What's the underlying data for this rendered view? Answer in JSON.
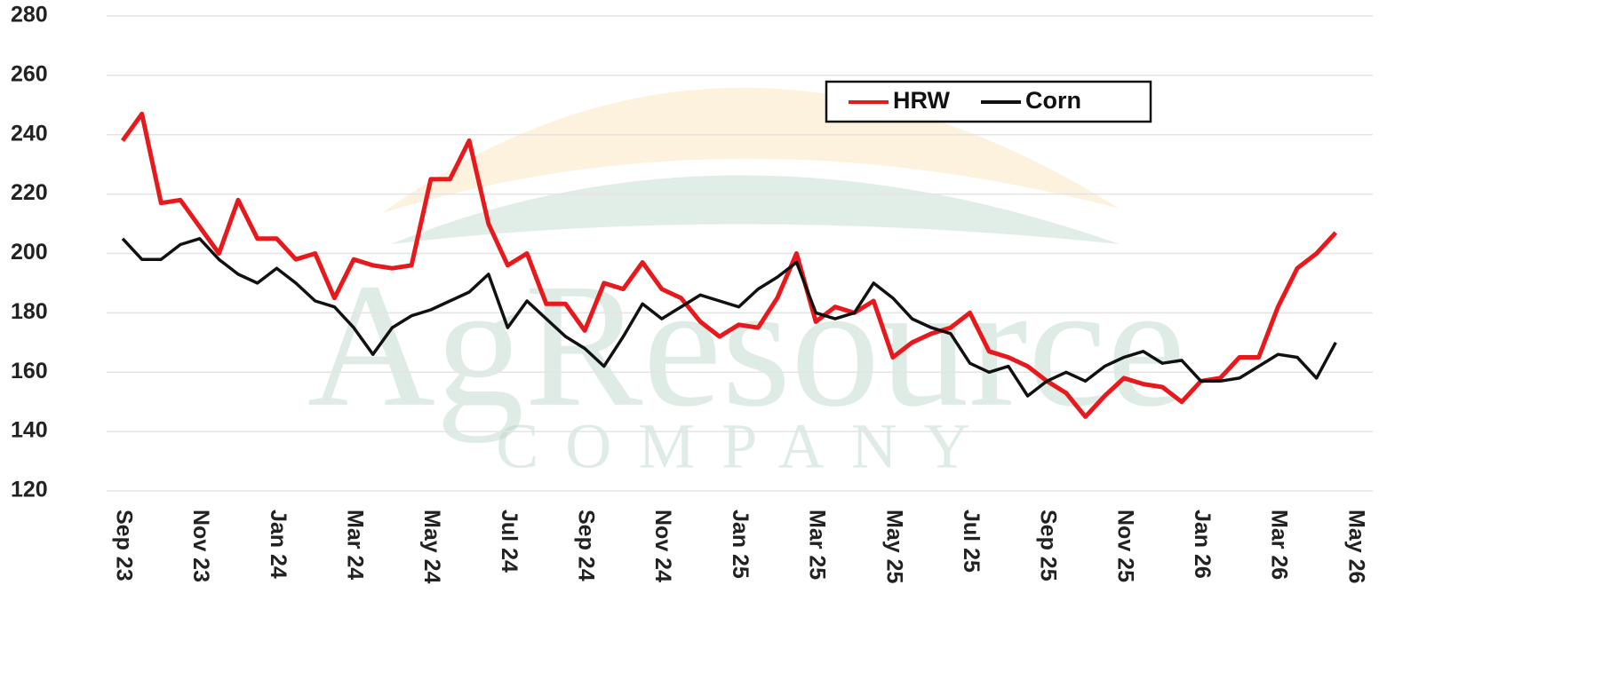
{
  "chart_data": {
    "type": "line",
    "watermark": {
      "title": "AgResource",
      "subtitle": "COMPANY"
    },
    "categories": [
      "Sep 23",
      null,
      null,
      null,
      "Nov 23",
      null,
      null,
      null,
      "Jan 24",
      null,
      null,
      null,
      "Mar 24",
      null,
      null,
      null,
      "May 24",
      null,
      null,
      null,
      "Jul 24",
      null,
      null,
      null,
      "Sep 24",
      null,
      null,
      null,
      "Nov 24",
      null,
      null,
      null,
      "Jan 25",
      null,
      null,
      null,
      "Mar 25",
      null,
      null,
      null,
      "May 25",
      null,
      null,
      null,
      "Jul 25",
      null,
      null,
      null,
      "Sep 25",
      null,
      null,
      null,
      "Nov 25",
      null,
      null,
      null,
      "Jan 26",
      null,
      null,
      null,
      "Mar 26",
      null,
      null,
      null,
      "May 26"
    ],
    "series": [
      {
        "name": "HRW",
        "color": "#e8191c",
        "values": [
          238,
          247,
          217,
          218,
          209,
          200,
          218,
          205,
          205,
          198,
          200,
          185,
          198,
          196,
          195,
          196,
          225,
          225,
          238,
          210,
          196,
          200,
          183,
          183,
          174,
          190,
          188,
          197,
          188,
          185,
          177,
          172,
          176,
          175,
          185,
          200,
          177,
          182,
          180,
          184,
          165,
          170,
          173,
          175,
          180,
          167,
          165,
          162,
          157,
          153,
          145,
          152,
          158,
          156,
          155,
          150,
          157,
          158,
          165,
          165,
          182,
          195,
          200,
          207,
          null
        ]
      },
      {
        "name": "Corn",
        "color": "#111111",
        "values": [
          205,
          198,
          198,
          203,
          205,
          198,
          193,
          190,
          195,
          190,
          184,
          182,
          175,
          166,
          175,
          179,
          181,
          184,
          187,
          193,
          175,
          184,
          178,
          172,
          168,
          162,
          172,
          183,
          178,
          182,
          186,
          184,
          182,
          188,
          192,
          197,
          180,
          178,
          180,
          190,
          185,
          178,
          175,
          173,
          163,
          160,
          162,
          152,
          157,
          160,
          157,
          162,
          165,
          167,
          163,
          164,
          157,
          157,
          158,
          162,
          166,
          165,
          158,
          170,
          null
        ]
      }
    ],
    "ylim": [
      120,
      280
    ],
    "yticks": [
      120,
      140,
      160,
      180,
      200,
      220,
      240,
      260,
      280
    ],
    "grid": true,
    "legend": "top-right"
  }
}
